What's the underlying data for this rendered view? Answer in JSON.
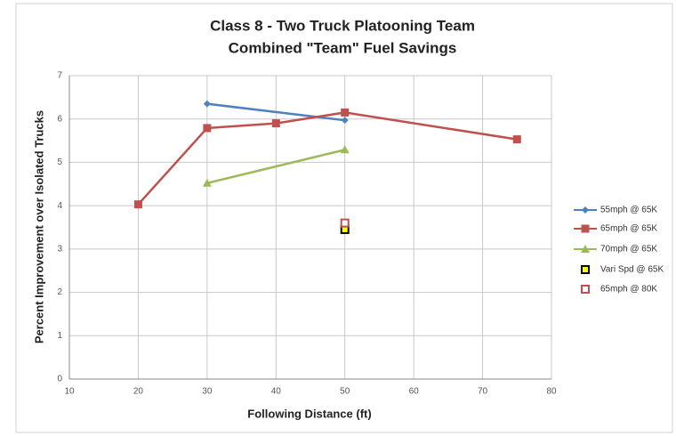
{
  "chart_data": {
    "type": "line",
    "title": "Class 8 - Two Truck Platooning Team",
    "subtitle": "Combined \"Team\" Fuel Savings",
    "x_label": "Following Distance (ft)",
    "y_label": "Percent Improvement over Isolated Trucks",
    "xlim": [
      10,
      80
    ],
    "xticks": [
      10,
      20,
      30,
      40,
      50,
      60,
      70,
      80
    ],
    "ylim": [
      0,
      7
    ],
    "yticks": [
      0,
      1,
      2,
      3,
      4,
      5,
      6,
      7
    ],
    "grid": true,
    "legend": "right",
    "series": [
      {
        "name": "55mph @ 65K",
        "color": "#4f81bd",
        "marker": "diamond",
        "line": true,
        "x": [
          30,
          50
        ],
        "values": [
          6.35,
          5.97
        ]
      },
      {
        "name": "65mph @ 65K",
        "color": "#c0504d",
        "marker": "square",
        "line": true,
        "x": [
          20,
          30,
          40,
          50,
          75
        ],
        "values": [
          4.03,
          5.79,
          5.9,
          6.15,
          5.53
        ]
      },
      {
        "name": "70mph @ 65K",
        "color": "#9bbb59",
        "marker": "triangle",
        "line": true,
        "x": [
          30,
          50
        ],
        "values": [
          4.52,
          5.29
        ]
      },
      {
        "name": "Vari Spd @ 65K",
        "color": "#000000",
        "fill": "#ffff00",
        "marker": "square-open",
        "line": false,
        "x": [
          50
        ],
        "values": [
          3.45
        ]
      },
      {
        "name": "65mph @ 80K",
        "color": "#c0504d",
        "fill": "#ffffff",
        "marker": "square-open",
        "line": false,
        "x": [
          50
        ],
        "values": [
          3.6
        ]
      }
    ]
  }
}
